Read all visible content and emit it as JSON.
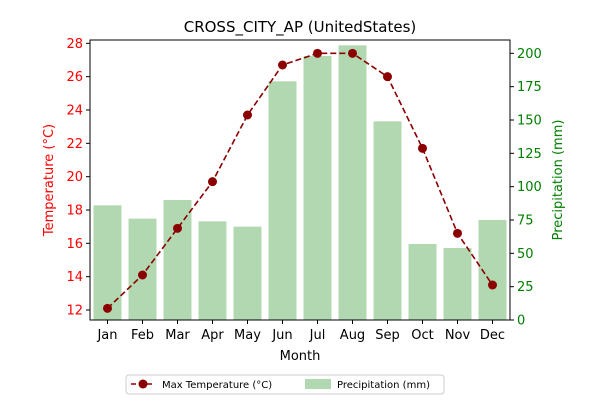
{
  "chart_data": {
    "type": "bar+line",
    "title": "CROSS_CITY_AP (UnitedStates)",
    "xlabel": "Month",
    "categories": [
      "Jan",
      "Feb",
      "Mar",
      "Apr",
      "May",
      "Jun",
      "Jul",
      "Aug",
      "Sep",
      "Oct",
      "Nov",
      "Dec"
    ],
    "y_left": {
      "label": "Temperature (°C)",
      "range": [
        11.4,
        28.2
      ],
      "ticks": [
        12,
        14,
        16,
        18,
        20,
        22,
        24,
        26,
        28
      ],
      "color": "#ff0000"
    },
    "y_right": {
      "label": "Precipitation (mm)",
      "range": [
        0,
        210
      ],
      "ticks": [
        0,
        25,
        50,
        75,
        100,
        125,
        150,
        175,
        200
      ],
      "color": "#008000"
    },
    "series": [
      {
        "name": "Max Temperature (°C)",
        "type": "line",
        "axis": "left",
        "color": "#8b0000",
        "values": [
          12.1,
          14.1,
          16.9,
          19.7,
          23.7,
          26.7,
          27.4,
          27.4,
          26.0,
          21.7,
          16.6,
          13.5
        ]
      },
      {
        "name": "Precipitation (mm)",
        "type": "bar",
        "axis": "right",
        "color": "#b2d8b2",
        "values": [
          86,
          76,
          90,
          74,
          70,
          179,
          198,
          206,
          149,
          57,
          54,
          75
        ]
      }
    ],
    "legend": "bottom-center",
    "grid": false
  }
}
